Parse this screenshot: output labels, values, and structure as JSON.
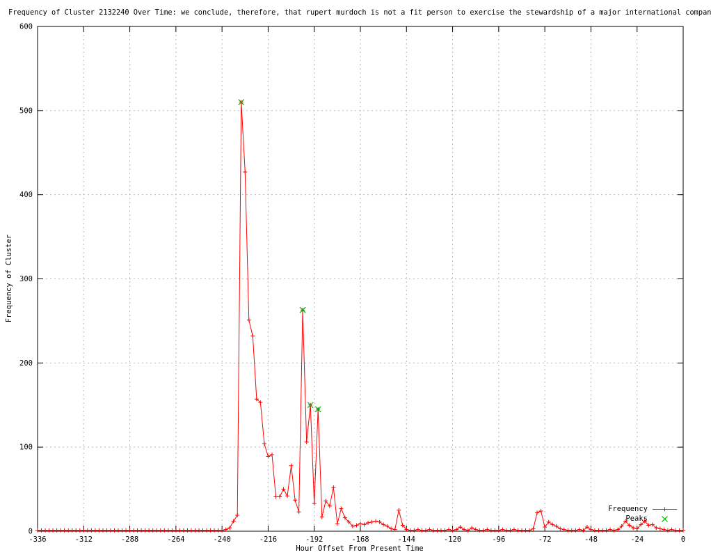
{
  "chart_data": {
    "type": "line",
    "title": "Frequency of Cluster 2132240 Over Time: we conclude, therefore, that rupert murdoch is not a fit person to exercise the stewardship of a major international compan",
    "xlabel": "Hour Offset From Present Time",
    "ylabel": "Frequency of Cluster",
    "xlim": [
      -336,
      0
    ],
    "ylim": [
      0,
      600
    ],
    "xticks": [
      -336,
      -312,
      -288,
      -264,
      -240,
      -216,
      -192,
      -168,
      -144,
      -120,
      -96,
      -72,
      -48,
      -24,
      0
    ],
    "yticks": [
      0,
      100,
      200,
      300,
      400,
      500,
      600
    ],
    "grid": true,
    "legend_position": "inside-bottom-right",
    "colors": {
      "frequency": "#ff0000",
      "peaks": "#00b000",
      "grid": "#b5b5b5",
      "border": "#000000"
    },
    "series": [
      {
        "name": "Frequency",
        "style": "line-with-plus-markers",
        "color": "#ff0000",
        "x_start": -336,
        "x_step": 2,
        "values": [
          1,
          1,
          1,
          1,
          1,
          1,
          1,
          1,
          1,
          1,
          1,
          1,
          1,
          1,
          1,
          1,
          1,
          1,
          1,
          1,
          1,
          1,
          1,
          1,
          1,
          1,
          1,
          1,
          1,
          1,
          1,
          1,
          1,
          1,
          1,
          1,
          1,
          1,
          1,
          1,
          1,
          1,
          1,
          1,
          1,
          1,
          1,
          1,
          1,
          2,
          4,
          12,
          19,
          510,
          427,
          251,
          232,
          157,
          153,
          104,
          89,
          91,
          41,
          41,
          50,
          42,
          78,
          37,
          23,
          263,
          106,
          150,
          33,
          145,
          17,
          36,
          30,
          52,
          9,
          27,
          16,
          11,
          6,
          7,
          9,
          8,
          10,
          11,
          12,
          11,
          8,
          6,
          3,
          2,
          25,
          7,
          2,
          1,
          1,
          2,
          1,
          1,
          2,
          1,
          1,
          1,
          1,
          2,
          1,
          2,
          5,
          2,
          1,
          4,
          2,
          1,
          1,
          2,
          1,
          1,
          1,
          2,
          1,
          1,
          2,
          1,
          1,
          1,
          1,
          3,
          22,
          24,
          5,
          11,
          8,
          6,
          3,
          2,
          1,
          1,
          1,
          2,
          1,
          5,
          2,
          1,
          1,
          1,
          1,
          2,
          1,
          2,
          6,
          12,
          7,
          4,
          3,
          8,
          12,
          7,
          8,
          4,
          3,
          2,
          1,
          2,
          1,
          1,
          1
        ]
      },
      {
        "name": "Peaks",
        "style": "x-markers",
        "color": "#00b000",
        "points": [
          [
            -230,
            510
          ],
          [
            -198,
            263
          ],
          [
            -194,
            150
          ],
          [
            -190,
            145
          ]
        ]
      }
    ]
  }
}
